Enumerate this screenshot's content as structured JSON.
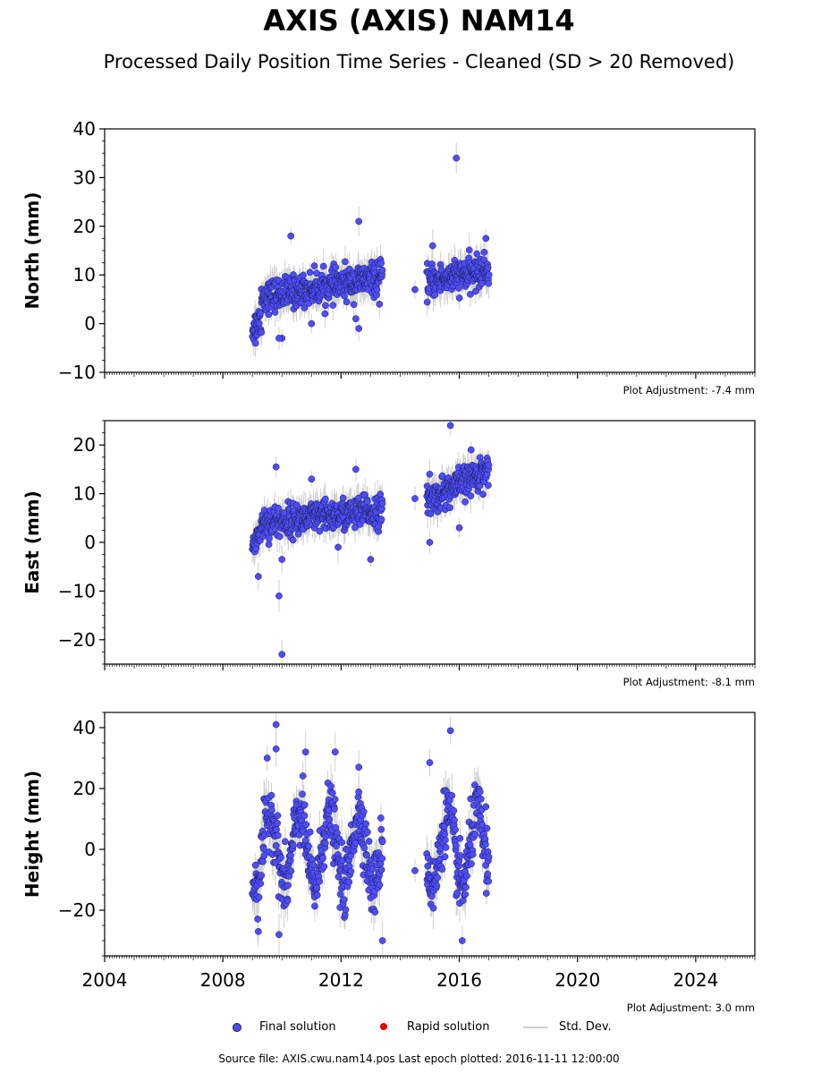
{
  "title": "AXIS (AXIS) NAM14",
  "subtitle": "Processed Daily Position Time Series - Cleaned (SD > 20 Removed)",
  "legend": {
    "final_label": "Final solution",
    "rapid_label": "Rapid solution",
    "std_label": "Std. Dev."
  },
  "footer": "Source file: AXIS.cwu.nam14.pos  Last epoch plotted: 2016-11-11 12:00:00",
  "colors": {
    "final": "#4d4dff",
    "rapid": "#e00000",
    "std_dev": "#cfcfcf"
  },
  "chart_data": [
    {
      "type": "scatter",
      "ylabel": "North (mm)",
      "adjustment_label": "Plot Adjustment: -7.4 mm",
      "xlim": [
        2004,
        2026
      ],
      "ylim": [
        -10,
        40
      ],
      "yticks": [
        -10,
        0,
        10,
        20,
        30,
        40
      ],
      "ytick_labels": [
        "−10",
        "0",
        "10",
        "20",
        "30",
        "40"
      ],
      "xticks": [
        2004,
        2008,
        2012,
        2016,
        2020,
        2024
      ],
      "show_x_tick_labels": false,
      "grid": false,
      "trend_segments": [
        {
          "x0": 2009.0,
          "x1": 2009.3,
          "y0": -1.0,
          "y1": 1.0
        },
        {
          "x0": 2009.3,
          "x1": 2013.4,
          "y0": 5.5,
          "y1": 9.5
        },
        {
          "x0": 2014.9,
          "x1": 2017.0,
          "y0": 8.5,
          "y1": 11.0
        }
      ],
      "outliers": [
        {
          "x": 2010.3,
          "y": 18
        },
        {
          "x": 2012.6,
          "y": 21
        },
        {
          "x": 2015.9,
          "y": 34
        },
        {
          "x": 2010.0,
          "y": -3
        },
        {
          "x": 2009.9,
          "y": -3
        },
        {
          "x": 2009.1,
          "y": -4
        },
        {
          "x": 2012.6,
          "y": -1
        },
        {
          "x": 2011.0,
          "y": 0
        },
        {
          "x": 2012.5,
          "y": 1
        },
        {
          "x": 2014.5,
          "y": 7
        },
        {
          "x": 2015.1,
          "y": 16
        },
        {
          "x": 2016.9,
          "y": 17.5
        },
        {
          "x": 2013.3,
          "y": 4
        }
      ]
    },
    {
      "type": "scatter",
      "ylabel": "East (mm)",
      "adjustment_label": "Plot Adjustment: -8.1 mm",
      "xlim": [
        2004,
        2026
      ],
      "ylim": [
        -25,
        25
      ],
      "yticks": [
        -20,
        -10,
        0,
        10,
        20
      ],
      "ytick_labels": [
        "−20",
        "−10",
        "0",
        "10",
        "20"
      ],
      "xticks": [
        2004,
        2008,
        2012,
        2016,
        2020,
        2024
      ],
      "show_x_tick_labels": false,
      "grid": false,
      "trend_segments": [
        {
          "x0": 2009.0,
          "x1": 2009.3,
          "y0": -1.0,
          "y1": 3.0
        },
        {
          "x0": 2009.3,
          "x1": 2013.4,
          "y0": 4.0,
          "y1": 6.5
        },
        {
          "x0": 2014.9,
          "x1": 2017.0,
          "y0": 8.5,
          "y1": 15.0
        }
      ],
      "outliers": [
        {
          "x": 2010.0,
          "y": -23
        },
        {
          "x": 2009.9,
          "y": -11
        },
        {
          "x": 2009.2,
          "y": -7
        },
        {
          "x": 2010.0,
          "y": -3.5
        },
        {
          "x": 2013.0,
          "y": -3.5
        },
        {
          "x": 2009.8,
          "y": 15.5
        },
        {
          "x": 2012.5,
          "y": 15
        },
        {
          "x": 2015.7,
          "y": 24
        },
        {
          "x": 2016.4,
          "y": 19
        },
        {
          "x": 2015.0,
          "y": 0
        },
        {
          "x": 2015.0,
          "y": 14
        },
        {
          "x": 2014.5,
          "y": 9
        },
        {
          "x": 2011.9,
          "y": -1
        },
        {
          "x": 2011.0,
          "y": 13
        },
        {
          "x": 2016.0,
          "y": 3
        }
      ]
    },
    {
      "type": "scatter",
      "ylabel": "Height (mm)",
      "adjustment_label": "Plot Adjustment: 3.0 mm",
      "xlim": [
        2004,
        2026
      ],
      "ylim": [
        -35,
        45
      ],
      "yticks": [
        -20,
        0,
        20,
        40
      ],
      "ytick_labels": [
        "−20",
        "0",
        "20",
        "40"
      ],
      "xticks": [
        2004,
        2008,
        2012,
        2016,
        2020,
        2024
      ],
      "xtick_labels": [
        "2004",
        "2008",
        "2012",
        "2016",
        "2020",
        "2024"
      ],
      "show_x_tick_labels": true,
      "grid": false,
      "seasonal": {
        "segments": [
          [
            2009.0,
            2013.4
          ],
          [
            2014.9,
            2017.0
          ]
        ],
        "mean": 0,
        "amplitude": 12,
        "peak_year_fraction": 0.6
      },
      "outliers": [
        {
          "x": 2009.8,
          "y": 41
        },
        {
          "x": 2009.8,
          "y": 33
        },
        {
          "x": 2010.8,
          "y": 32
        },
        {
          "x": 2011.8,
          "y": 32
        },
        {
          "x": 2009.5,
          "y": 30
        },
        {
          "x": 2015.0,
          "y": 28.5
        },
        {
          "x": 2015.7,
          "y": 39
        },
        {
          "x": 2012.6,
          "y": 27
        },
        {
          "x": 2009.9,
          "y": -28
        },
        {
          "x": 2009.2,
          "y": -27
        },
        {
          "x": 2013.4,
          "y": -30
        },
        {
          "x": 2016.1,
          "y": -30
        },
        {
          "x": 2014.5,
          "y": -7
        },
        {
          "x": 2016.9,
          "y": 14
        }
      ]
    }
  ]
}
